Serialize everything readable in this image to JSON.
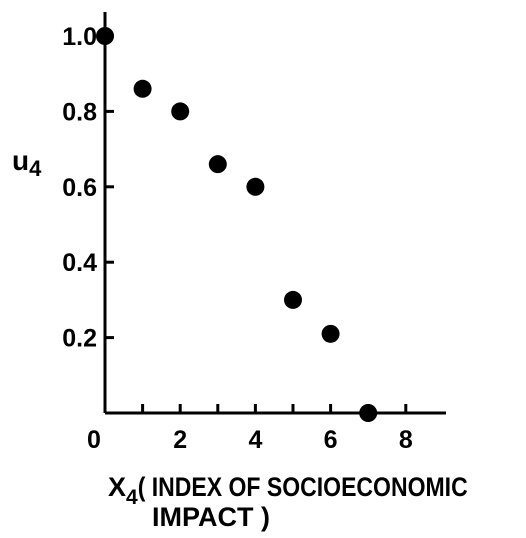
{
  "chart_data": {
    "type": "scatter",
    "title": "",
    "xlabel_main": "X",
    "xlabel_sub": "4",
    "xlabel_line1_rest": "( INDEX OF SOCIOECONOMIC",
    "xlabel_line2": "IMPACT )",
    "ylabel_main": "u",
    "ylabel_sub": "4",
    "xlim": [
      0,
      9
    ],
    "ylim": [
      0,
      1.0
    ],
    "x_ticks": [
      {
        "value": 0,
        "label": "0"
      },
      {
        "value": 2,
        "label": "2"
      },
      {
        "value": 4,
        "label": "4"
      },
      {
        "value": 6,
        "label": "6"
      },
      {
        "value": 8,
        "label": "8"
      }
    ],
    "y_ticks": [
      {
        "value": 0.2,
        "label": "0.2"
      },
      {
        "value": 0.4,
        "label": "0.4"
      },
      {
        "value": 0.6,
        "label": "0.6"
      },
      {
        "value": 0.8,
        "label": "0.8"
      },
      {
        "value": 1.0,
        "label": "1.0"
      }
    ],
    "y_origin_label": "0",
    "grid": false,
    "series": [
      {
        "x": [
          0,
          1,
          2,
          3,
          4,
          5,
          6,
          7
        ],
        "y": [
          1.0,
          0.86,
          0.8,
          0.66,
          0.6,
          0.3,
          0.21,
          0.0
        ]
      }
    ],
    "marker_color": "#000000"
  }
}
